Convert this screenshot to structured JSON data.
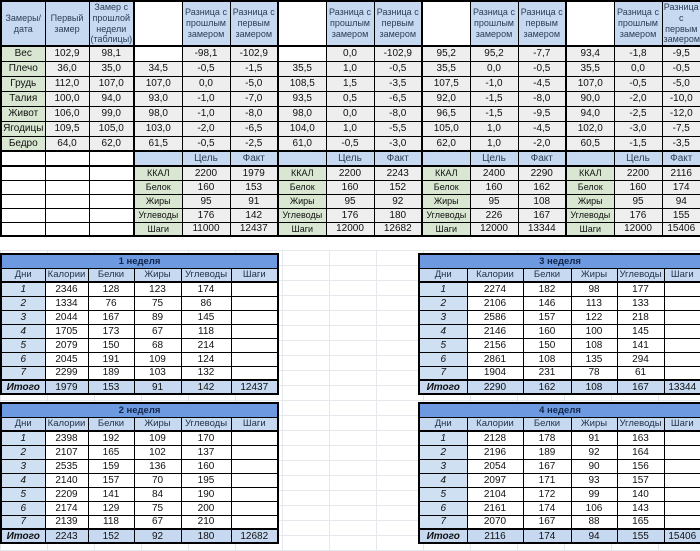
{
  "colors": {
    "header_blue": "#c6d9f1",
    "label_green": "#d9e7d2",
    "cell_gray": "#eeeeee",
    "week_title_blue": "#6c99e0",
    "day_col_blue": "#cfe0f3"
  },
  "measurements_table": {
    "cells": [
      [
        "Замеры/ дата",
        "Первый замер",
        "Замер с прошлой недели (таблицы)",
        "",
        "Разница с прошлым замером",
        "Разница с первым замером",
        "",
        "Разница с прошлым замером",
        "Разница с первым замером",
        "",
        "Разница с прошлым замером",
        "Разница с первым замером",
        "",
        "Разница с прошлым замером",
        "Разница с первым замером"
      ],
      [
        "Вес",
        "102,9",
        "98,1",
        "",
        "-98,1",
        "-102,9",
        "",
        "0,0",
        "-102,9",
        "95,2",
        "95,2",
        "-7,7",
        "93,4",
        "-1,8",
        "-9,5"
      ],
      [
        "Плечо",
        "36,0",
        "35,0",
        "34,5",
        "-0,5",
        "-1,5",
        "35,5",
        "1,0",
        "-0,5",
        "35,5",
        "0,0",
        "-0,5",
        "35,5",
        "0,0",
        "-0,5"
      ],
      [
        "Грудь",
        "112,0",
        "107,0",
        "107,0",
        "0,0",
        "-5,0",
        "108,5",
        "1,5",
        "-3,5",
        "107,5",
        "-1,0",
        "-4,5",
        "107,0",
        "-0,5",
        "-5,0"
      ],
      [
        "Талия",
        "100,0",
        "94,0",
        "93,0",
        "-1,0",
        "-7,0",
        "93,5",
        "0,5",
        "-6,5",
        "92,0",
        "-1,5",
        "-8,0",
        "90,0",
        "-2,0",
        "-10,0"
      ],
      [
        "Живот",
        "106,0",
        "99,0",
        "98,0",
        "-1,0",
        "-8,0",
        "98,0",
        "0,0",
        "-8,0",
        "96,5",
        "-1,5",
        "-9,5",
        "94,0",
        "-2,5",
        "-12,0"
      ],
      [
        "Ягодицы",
        "109,5",
        "105,0",
        "103,0",
        "-2,0",
        "-6,5",
        "104,0",
        "1,0",
        "-5,5",
        "105,0",
        "1,0",
        "-4,5",
        "102,0",
        "-3,0",
        "-7,5"
      ],
      [
        "Бедро",
        "64,0",
        "62,0",
        "61,5",
        "-0,5",
        "-2,5",
        "61,0",
        "-0,5",
        "-3,0",
        "62,0",
        "1,0",
        "-2,0",
        "60,5",
        "-1,5",
        "-3,5"
      ],
      [
        "",
        "",
        "",
        "",
        "Цель",
        "Факт",
        "",
        "Цель",
        "Факт",
        "",
        "Цель",
        "Факт",
        "",
        "Цель",
        "Факт"
      ],
      [
        "",
        "",
        "",
        "ККАЛ",
        "2200",
        "1979",
        "ККАЛ",
        "2200",
        "2243",
        "ККАЛ",
        "2400",
        "2290",
        "ККАЛ",
        "2200",
        "2116"
      ],
      [
        "",
        "",
        "",
        "Белок",
        "160",
        "153",
        "Белок",
        "160",
        "152",
        "Белок",
        "160",
        "162",
        "Белок",
        "160",
        "174"
      ],
      [
        "",
        "",
        "",
        "Жиры",
        "95",
        "91",
        "Жиры",
        "95",
        "92",
        "Жиры",
        "95",
        "108",
        "Жиры",
        "95",
        "94"
      ],
      [
        "",
        "",
        "",
        "Углеводы",
        "176",
        "142",
        "Углеводы",
        "176",
        "180",
        "Углеводы",
        "226",
        "167",
        "Углеводы",
        "176",
        "155"
      ],
      [
        "",
        "",
        "",
        "Шаги",
        "11000",
        "12437",
        "Шаги",
        "12000",
        "12682",
        "Шаги",
        "12000",
        "13344",
        "Шаги",
        "12000",
        "15406"
      ]
    ]
  },
  "week_tables": [
    {
      "title": "1 неделя",
      "headers": [
        "Дни",
        "Калории",
        "Белки",
        "Жиры",
        "Углеводы",
        "Шаги"
      ],
      "days": [
        [
          "1",
          "2346",
          "128",
          "123",
          "174",
          ""
        ],
        [
          "2",
          "1334",
          "76",
          "75",
          "86",
          ""
        ],
        [
          "3",
          "2044",
          "167",
          "89",
          "145",
          ""
        ],
        [
          "4",
          "1705",
          "173",
          "67",
          "118",
          ""
        ],
        [
          "5",
          "2079",
          "150",
          "68",
          "214",
          ""
        ],
        [
          "6",
          "2045",
          "191",
          "109",
          "124",
          ""
        ],
        [
          "7",
          "2299",
          "189",
          "103",
          "132",
          ""
        ]
      ],
      "total": [
        "Итого",
        "1979",
        "153",
        "91",
        "142",
        "12437"
      ]
    },
    {
      "title": "2 неделя",
      "headers": [
        "Дни",
        "Калории",
        "Белки",
        "Жиры",
        "Углеводы",
        "Шаги"
      ],
      "days": [
        [
          "1",
          "2398",
          "192",
          "109",
          "170",
          ""
        ],
        [
          "2",
          "2107",
          "165",
          "102",
          "137",
          ""
        ],
        [
          "3",
          "2535",
          "159",
          "136",
          "160",
          ""
        ],
        [
          "4",
          "2140",
          "157",
          "70",
          "195",
          ""
        ],
        [
          "5",
          "2209",
          "141",
          "84",
          "190",
          ""
        ],
        [
          "6",
          "2174",
          "129",
          "75",
          "200",
          ""
        ],
        [
          "7",
          "2139",
          "118",
          "67",
          "210",
          ""
        ]
      ],
      "total": [
        "Итого",
        "2243",
        "152",
        "92",
        "180",
        "12682"
      ]
    },
    {
      "title": "3 неделя",
      "headers": [
        "Дни",
        "Калории",
        "Белки",
        "Жиры",
        "Углеводы",
        "Шаги"
      ],
      "days": [
        [
          "1",
          "2274",
          "182",
          "98",
          "177",
          ""
        ],
        [
          "2",
          "2106",
          "146",
          "113",
          "133",
          ""
        ],
        [
          "3",
          "2586",
          "157",
          "122",
          "218",
          ""
        ],
        [
          "4",
          "2146",
          "160",
          "100",
          "145",
          ""
        ],
        [
          "5",
          "2156",
          "150",
          "108",
          "141",
          ""
        ],
        [
          "6",
          "2861",
          "108",
          "135",
          "294",
          ""
        ],
        [
          "7",
          "1904",
          "231",
          "78",
          "61",
          ""
        ]
      ],
      "total": [
        "Итого",
        "2290",
        "162",
        "108",
        "167",
        "13344"
      ]
    },
    {
      "title": "4 неделя",
      "headers": [
        "Дни",
        "Калории",
        "Белки",
        "Жиры",
        "Углеводы",
        "Шаги"
      ],
      "days": [
        [
          "1",
          "2128",
          "178",
          "91",
          "163",
          ""
        ],
        [
          "2",
          "2196",
          "189",
          "92",
          "164",
          ""
        ],
        [
          "3",
          "2054",
          "167",
          "90",
          "156",
          ""
        ],
        [
          "4",
          "2097",
          "171",
          "93",
          "157",
          ""
        ],
        [
          "5",
          "2104",
          "172",
          "99",
          "140",
          ""
        ],
        [
          "6",
          "2161",
          "174",
          "106",
          "143",
          ""
        ],
        [
          "7",
          "2070",
          "167",
          "88",
          "165",
          ""
        ]
      ],
      "total": [
        "Итого",
        "2116",
        "174",
        "94",
        "155",
        "15406"
      ]
    }
  ]
}
